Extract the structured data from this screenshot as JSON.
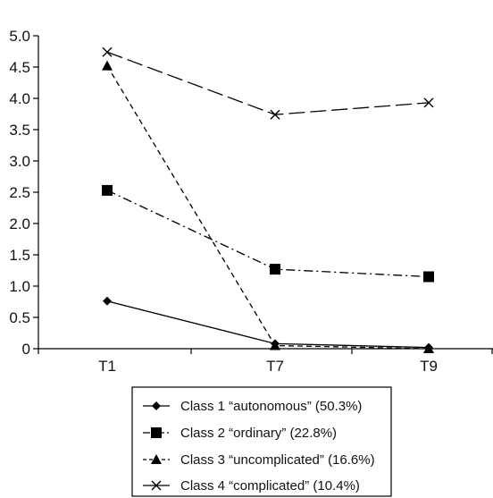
{
  "chart_data": {
    "type": "line",
    "title": "",
    "xlabel": "",
    "ylabel": "",
    "categories": [
      "T1",
      "T7",
      "T9"
    ],
    "ylim": [
      0,
      5.0
    ],
    "yticks": [
      "0",
      "0.5",
      "1.0",
      "1.5",
      "2.0",
      "2.5",
      "3.0",
      "3.5",
      "4.0",
      "4.5",
      "5.0"
    ],
    "grid": false,
    "legend_position": "bottom",
    "series": [
      {
        "name": "Class 1 “autonomous” (50.3%)",
        "values": [
          0.76,
          0.08,
          0.02
        ],
        "marker": "diamond",
        "dash": "solid"
      },
      {
        "name": "Class 2 “ordinary” (22.8%)",
        "values": [
          2.53,
          1.27,
          1.15
        ],
        "marker": "square",
        "dash": "dashdot"
      },
      {
        "name": "Class 3 “uncomplicated” (16.6%)",
        "values": [
          4.52,
          0.05,
          0.0
        ],
        "marker": "triangle",
        "dash": "dashed"
      },
      {
        "name": "Class 4 “complicated” (10.4%)",
        "values": [
          4.74,
          3.74,
          3.93
        ],
        "marker": "x",
        "dash": "longdash"
      }
    ]
  }
}
